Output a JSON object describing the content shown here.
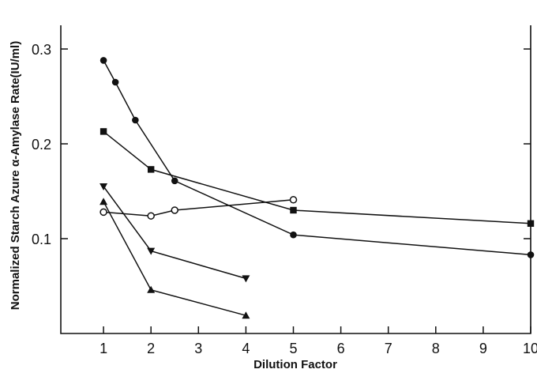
{
  "chart_data": {
    "type": "line",
    "title": "",
    "xlabel": "Dilution Factor",
    "ylabel": "Normalized Starch Azure α-Amylase Rate(IU/ml)",
    "x_ticks": [
      "1",
      "2",
      "3",
      "4",
      "5",
      "6",
      "7",
      "8",
      "9",
      "10"
    ],
    "y_ticks": [
      "0.1",
      "0.2",
      "0.3"
    ],
    "xlim": [
      0.1,
      10
    ],
    "ylim": [
      0,
      0.325
    ],
    "grid": false,
    "legend": "none",
    "series": [
      {
        "marker": "filled-circle",
        "x": [
          1,
          1.25,
          1.67,
          2.5,
          5,
          10
        ],
        "y": [
          0.288,
          0.265,
          0.225,
          0.161,
          0.104,
          0.083
        ]
      },
      {
        "marker": "filled-square",
        "x": [
          1,
          2,
          5,
          10
        ],
        "y": [
          0.213,
          0.173,
          0.13,
          0.116
        ]
      },
      {
        "marker": "open-circle",
        "x": [
          1,
          2,
          2.5,
          5
        ],
        "y": [
          0.128,
          0.124,
          0.13,
          0.141
        ]
      },
      {
        "marker": "filled-triangle-down",
        "x": [
          1,
          2,
          4
        ],
        "y": [
          0.155,
          0.087,
          0.058
        ]
      },
      {
        "marker": "filled-triangle-up",
        "x": [
          1,
          2,
          4
        ],
        "y": [
          0.139,
          0.046,
          0.019
        ]
      }
    ]
  }
}
